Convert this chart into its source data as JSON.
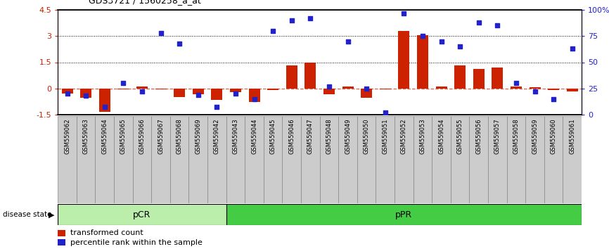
{
  "title": "GDS3721 / 1560258_a_at",
  "samples": [
    "GSM559062",
    "GSM559063",
    "GSM559064",
    "GSM559065",
    "GSM559066",
    "GSM559067",
    "GSM559068",
    "GSM559069",
    "GSM559042",
    "GSM559043",
    "GSM559044",
    "GSM559045",
    "GSM559046",
    "GSM559047",
    "GSM559048",
    "GSM559049",
    "GSM559050",
    "GSM559051",
    "GSM559052",
    "GSM559053",
    "GSM559054",
    "GSM559055",
    "GSM559056",
    "GSM559057",
    "GSM559058",
    "GSM559059",
    "GSM559060",
    "GSM559061"
  ],
  "transformed_count": [
    -0.3,
    -0.55,
    -1.35,
    -0.07,
    0.12,
    -0.05,
    -0.5,
    -0.35,
    -0.65,
    -0.2,
    -0.8,
    -0.08,
    1.3,
    1.5,
    -0.35,
    0.1,
    -0.55,
    -0.05,
    3.3,
    3.05,
    0.12,
    1.3,
    1.1,
    1.2,
    0.12,
    0.05,
    -0.08,
    -0.18
  ],
  "percentile_rank": [
    20,
    18,
    7,
    30,
    22,
    78,
    68,
    19,
    7,
    20,
    15,
    80,
    90,
    92,
    27,
    70,
    25,
    2,
    97,
    75,
    70,
    65,
    88,
    85,
    30,
    22,
    15,
    63
  ],
  "pCR_count": 9,
  "pPR_count": 19,
  "ylim_left": [
    -1.5,
    4.5
  ],
  "ylim_right": [
    0,
    100
  ],
  "yticks_left": [
    -1.5,
    0,
    1.5,
    3,
    4.5
  ],
  "yticks_right": [
    0,
    25,
    50,
    75,
    100
  ],
  "ytick_labels_left": [
    "-1.5",
    "0",
    "1.5",
    "3",
    "4.5"
  ],
  "ytick_labels_right": [
    "0",
    "25",
    "50",
    "75",
    "100%"
  ],
  "dotted_lines": [
    1.5,
    3.0
  ],
  "bar_color": "#cc2200",
  "dot_color": "#2222cc",
  "legend_bar_label": "transformed count",
  "legend_dot_label": "percentile rank within the sample",
  "disease_label": "disease state",
  "pCR_label": "pCR",
  "pPR_label": "pPR",
  "pCR_color": "#bbeeaa",
  "pPR_color": "#44cc44",
  "bg_color": "#ffffff",
  "tick_bg_color": "#cccccc",
  "tick_border_color": "#888888"
}
